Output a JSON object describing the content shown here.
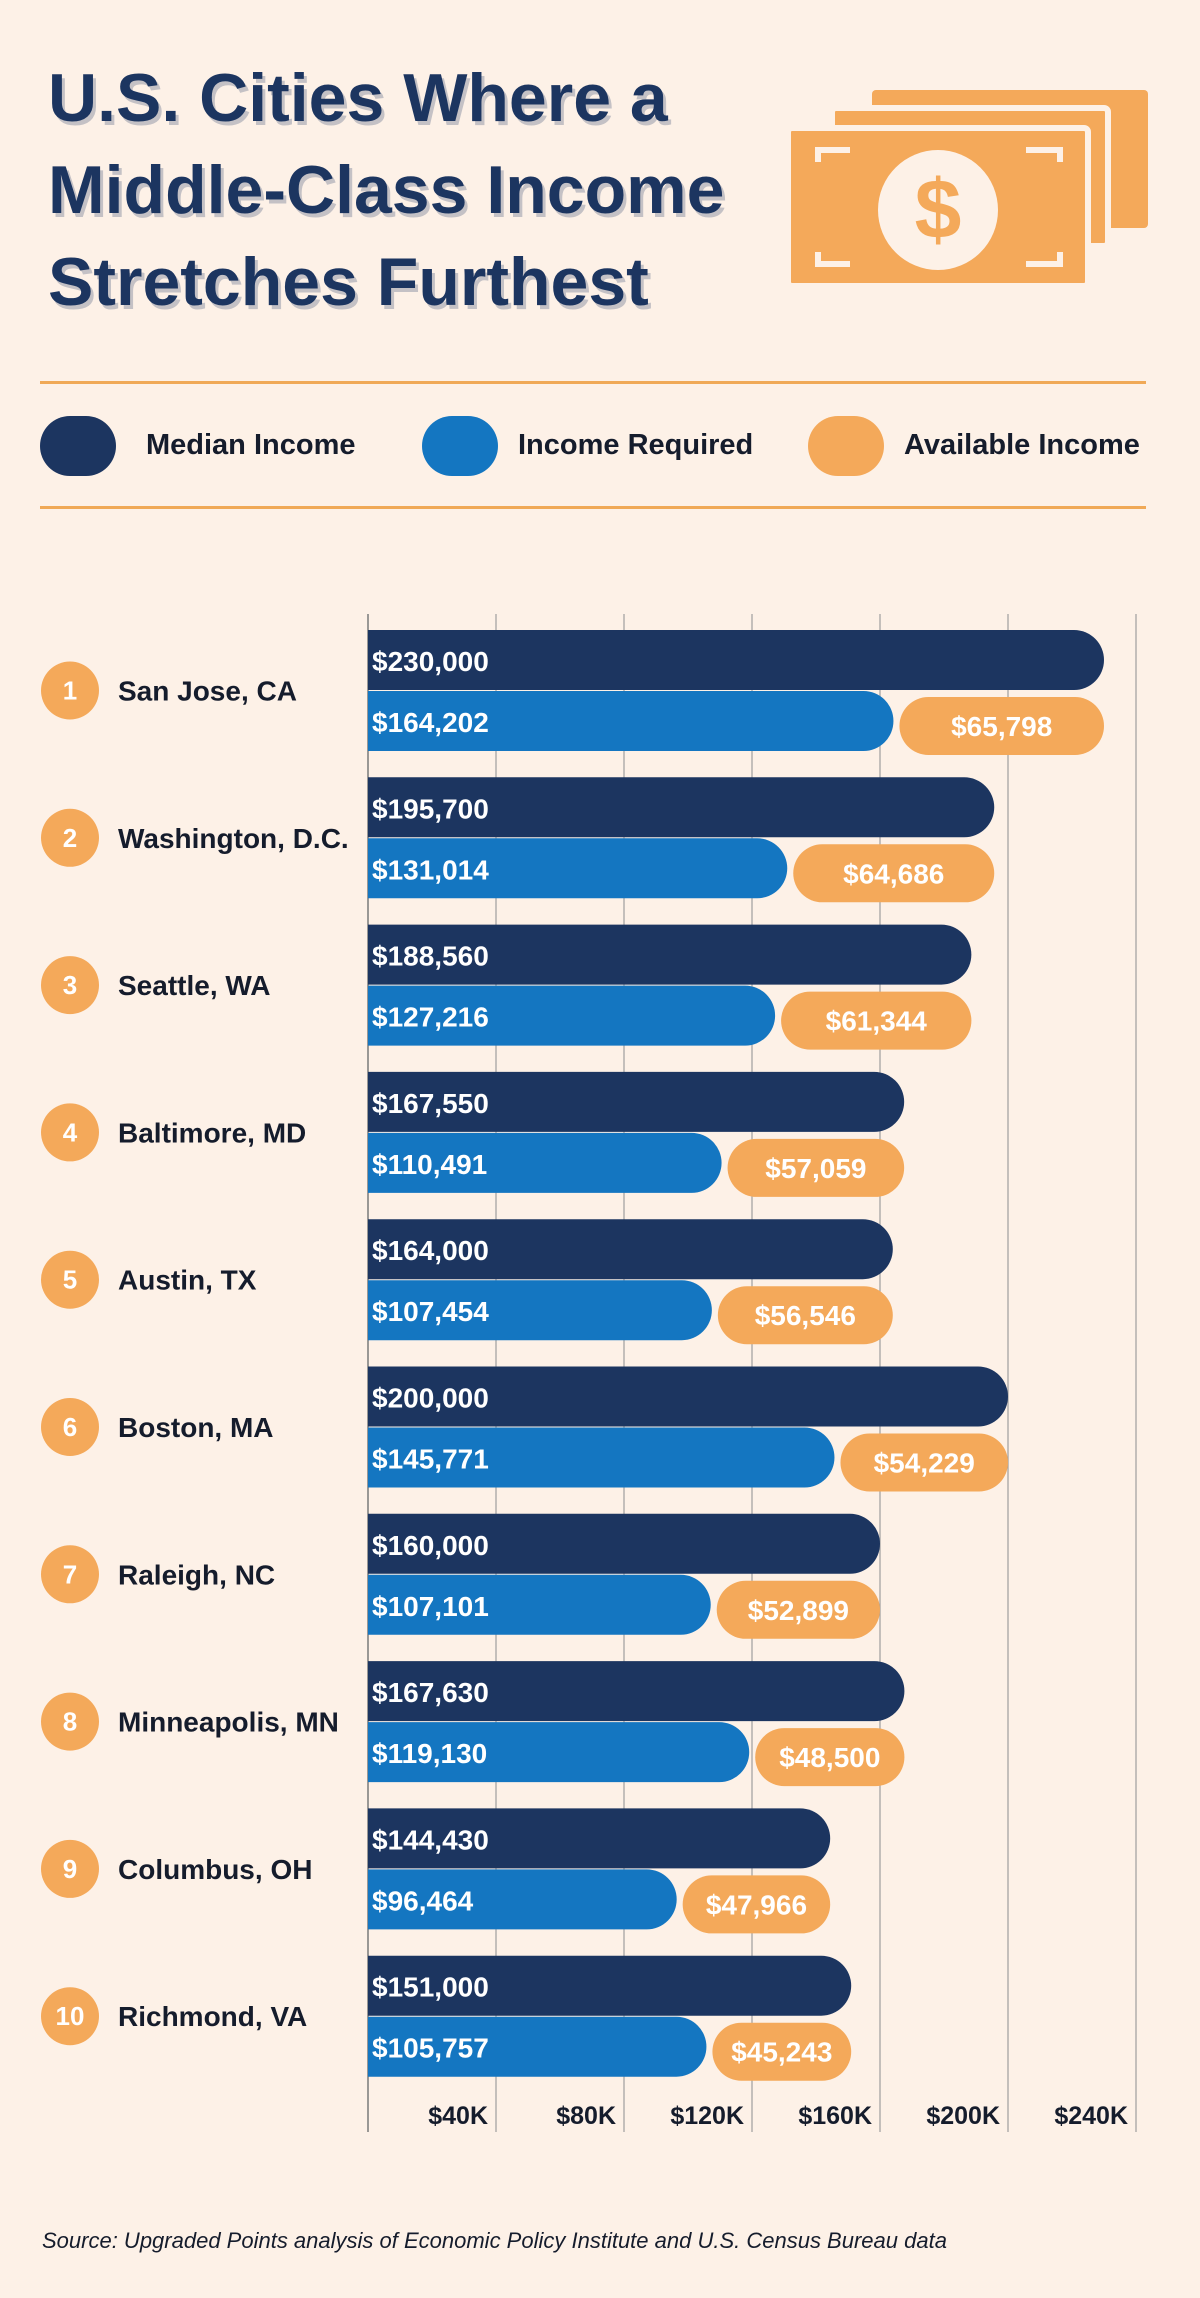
{
  "title_lines": [
    "U.S. Cities Where a",
    "Middle-Class Income",
    "Stretches Furthest"
  ],
  "legend": [
    {
      "label": "Median Income",
      "color": "#1c3560"
    },
    {
      "label": "Income Required",
      "color": "#1476c1"
    },
    {
      "label": "Available Income",
      "color": "#f4a95a"
    }
  ],
  "money_icon": {
    "name": "dollar-bill-icon",
    "glyph": "$",
    "color": "#f4a95a"
  },
  "source": "Source: Upgraded Points analysis of Economic Policy Institute and U.S. Census Bureau data",
  "chart_data": {
    "type": "bar",
    "orientation": "horizontal",
    "categories": [
      "San Jose, CA",
      "Washington, D.C.",
      "Seattle, WA",
      "Baltimore, MD",
      "Austin, TX",
      "Boston, MA",
      "Raleigh, NC",
      "Minneapolis, MN",
      "Columbus, OH",
      "Richmond, VA"
    ],
    "ranks": [
      "1",
      "2",
      "3",
      "4",
      "5",
      "6",
      "7",
      "8",
      "9",
      "10"
    ],
    "series": [
      {
        "name": "Median Income",
        "values": [
          230000,
          195700,
          188560,
          167550,
          164000,
          200000,
          160000,
          167630,
          144430,
          151000
        ],
        "labels": [
          "$230,000",
          "$195,700",
          "$188,560",
          "$167,550",
          "$164,000",
          "$200,000",
          "$160,000",
          "$167,630",
          "$144,430",
          "$151,000"
        ]
      },
      {
        "name": "Income Required",
        "values": [
          164202,
          131014,
          127216,
          110491,
          107454,
          145771,
          107101,
          119130,
          96464,
          105757
        ],
        "labels": [
          "$164,202",
          "$131,014",
          "$127,216",
          "$110,491",
          "$107,454",
          "$145,771",
          "$107,101",
          "$119,130",
          "$96,464",
          "$105,757"
        ]
      },
      {
        "name": "Available Income",
        "values": [
          65798,
          64686,
          61344,
          57059,
          56546,
          54229,
          52899,
          48500,
          47966,
          45243
        ],
        "labels": [
          "$65,798",
          "$64,686",
          "$61,344",
          "$57,059",
          "$56,546",
          "$54,229",
          "$52,899",
          "$48,500",
          "$47,966",
          "$45,243"
        ]
      }
    ],
    "xlim": [
      0,
      240000
    ],
    "xticks": [
      40000,
      80000,
      120000,
      160000,
      200000,
      240000
    ],
    "xtick_labels": [
      "$40K",
      "$80K",
      "$120K",
      "$160K",
      "$200K",
      "$240K"
    ],
    "grid": true,
    "legend_position": "top"
  }
}
